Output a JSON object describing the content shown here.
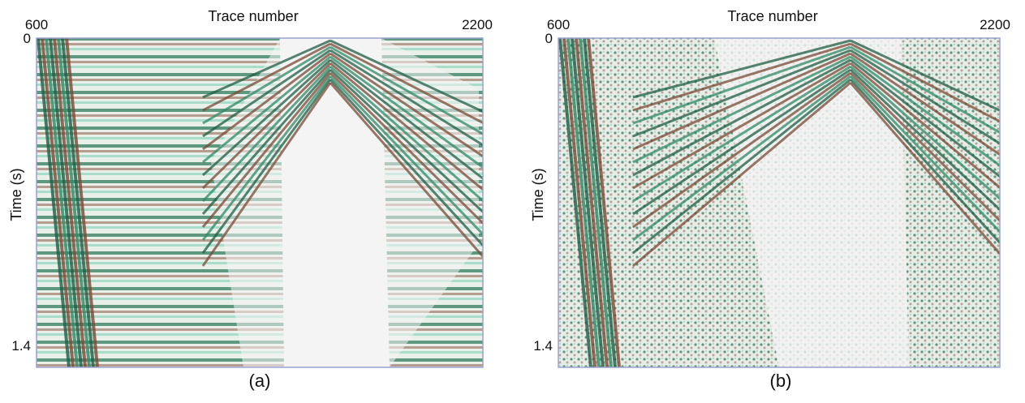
{
  "panels": [
    {
      "x_label": "Trace number",
      "y_label": "Time (s)",
      "x_ticks": [
        "600",
        "2200"
      ],
      "y_ticks": [
        "0",
        "1.4"
      ],
      "caption": "(a)"
    },
    {
      "x_label": "Trace number",
      "y_label": "Time (s)",
      "x_ticks": [
        "600",
        "2200"
      ],
      "y_ticks": [
        "0",
        "1.4"
      ],
      "caption": "(b)"
    }
  ]
}
